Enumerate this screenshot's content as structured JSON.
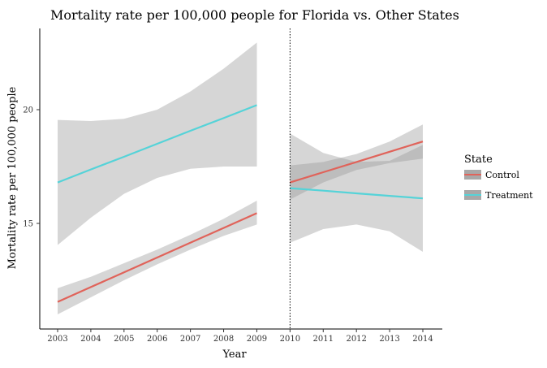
{
  "chart_data": {
    "type": "line",
    "title": "Mortality rate per 100,000 people for Florida vs. Other States",
    "xlabel": "Year",
    "ylabel": "Mortality rate per 100,000 people",
    "xlim": [
      2003,
      2014
    ],
    "ylim": [
      10.8,
      23.5
    ],
    "x_ticks": [
      "2003",
      "2004",
      "2005",
      "2006",
      "2007",
      "2008",
      "2009",
      "2010",
      "2011",
      "2012",
      "2013",
      "2014"
    ],
    "y_ticks": [
      "15",
      "20"
    ],
    "x_tick_values": [
      2003,
      2004,
      2005,
      2006,
      2007,
      2008,
      2009,
      2010,
      2011,
      2012,
      2013,
      2014
    ],
    "y_tick_values": [
      15,
      20
    ],
    "cutoff": 2010,
    "grid": false,
    "legend": {
      "title": "State",
      "position": "right",
      "items": [
        {
          "label": "Control",
          "color": "#e0635a"
        },
        {
          "label": "Treatment",
          "color": "#55d3d8"
        }
      ]
    },
    "series": [
      {
        "name": "Control",
        "color": "#e0635a",
        "segments": [
          {
            "x": [
              2003,
              2004,
              2005,
              2006,
              2007,
              2008,
              2009
            ],
            "y": [
              11.55,
              12.2,
              12.85,
              13.5,
              14.15,
              14.8,
              15.45
            ],
            "lower": [
              11.0,
              11.75,
              12.5,
              13.2,
              13.85,
              14.45,
              14.95
            ],
            "upper": [
              12.15,
              12.65,
              13.25,
              13.85,
              14.5,
              15.2,
              16.0
            ]
          },
          {
            "x": [
              2010,
              2011,
              2012,
              2013,
              2014
            ],
            "y": [
              16.8,
              17.25,
              17.7,
              18.15,
              18.6
            ],
            "lower": [
              16.05,
              16.8,
              17.35,
              17.65,
              17.85
            ],
            "upper": [
              17.55,
              17.7,
              18.05,
              18.6,
              19.35
            ]
          }
        ]
      },
      {
        "name": "Treatment",
        "color": "#55d3d8",
        "segments": [
          {
            "x": [
              2003,
              2004,
              2005,
              2006,
              2007,
              2008,
              2009
            ],
            "y": [
              16.8,
              17.37,
              17.93,
              18.5,
              19.07,
              19.63,
              20.2
            ],
            "lower": [
              14.05,
              15.25,
              16.3,
              17.0,
              17.4,
              17.5,
              17.5
            ],
            "upper": [
              19.55,
              19.5,
              19.6,
              20.0,
              20.8,
              21.8,
              22.95
            ]
          },
          {
            "x": [
              2010,
              2011,
              2012,
              2013,
              2014
            ],
            "y": [
              16.55,
              16.44,
              16.32,
              16.21,
              16.1
            ],
            "lower": [
              14.15,
              14.75,
              14.95,
              14.65,
              13.75
            ],
            "upper": [
              18.95,
              18.1,
              17.7,
              17.75,
              18.45
            ]
          }
        ]
      }
    ]
  }
}
